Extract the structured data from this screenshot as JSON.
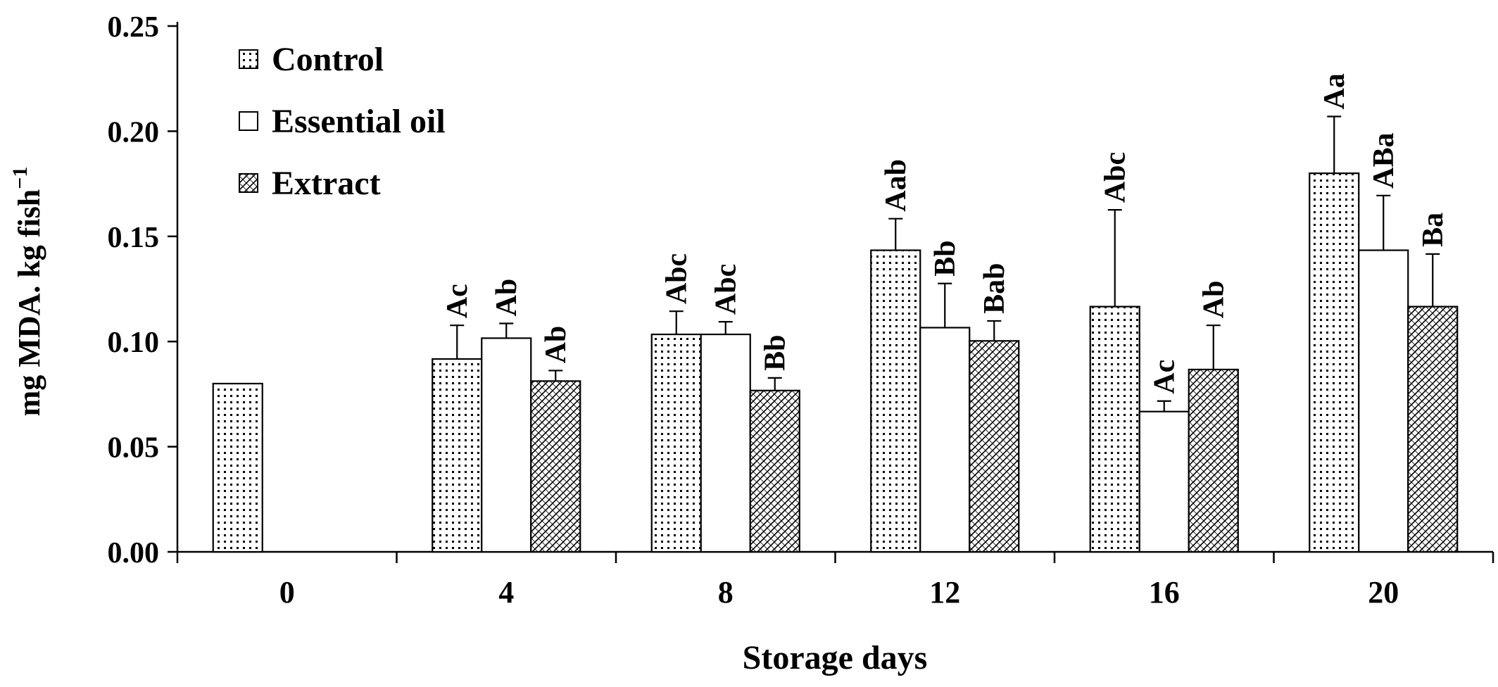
{
  "chart_data": {
    "type": "bar",
    "y_label": "mg MDA. kg fish",
    "y_label_superscript": "−1",
    "x_label": "Storage days",
    "categories": [
      "0",
      "4",
      "8",
      "12",
      "16",
      "20"
    ],
    "series": [
      {
        "name": "Control",
        "color": "#000000",
        "pattern": "dots",
        "values": [
          0.08,
          0.0917,
          0.1034,
          0.1434,
          0.1166,
          0.18
        ],
        "errors": [
          null,
          0.016,
          0.011,
          0.015,
          0.046,
          0.027
        ],
        "labels": [
          null,
          "Ac",
          "Abc",
          "Aab",
          "Abc",
          "Aa"
        ]
      },
      {
        "name": "Essential oil",
        "color": "#000000",
        "pattern": "none",
        "values": [
          null,
          0.1016,
          0.1034,
          0.1066,
          0.0667,
          0.1434
        ],
        "errors": [
          null,
          0.007,
          0.006,
          0.021,
          0.005,
          0.026
        ],
        "labels": [
          null,
          "Ab",
          "Abc",
          "Bb",
          "Ac",
          "ABa"
        ]
      },
      {
        "name": "Extract",
        "color": "#000000",
        "pattern": "hatch",
        "values": [
          null,
          0.0812,
          0.0767,
          0.1003,
          0.0867,
          0.1166
        ],
        "errors": [
          null,
          0.005,
          0.006,
          0.0095,
          0.021,
          0.025
        ],
        "labels": [
          null,
          "Ab",
          "Bb",
          "Bab",
          "Ab",
          "Ba"
        ]
      }
    ],
    "ylim": [
      0,
      0.25
    ],
    "yticks": [
      {
        "value": 0,
        "label": "0.00"
      },
      {
        "value": 0.05,
        "label": "0.05"
      },
      {
        "value": 0.1,
        "label": "0.10"
      },
      {
        "value": 0.15,
        "label": "0.15"
      },
      {
        "value": 0.2,
        "label": "0.20"
      },
      {
        "value": 0.25,
        "label": "0.25"
      }
    ],
    "grid": false,
    "legend": "top-left"
  }
}
